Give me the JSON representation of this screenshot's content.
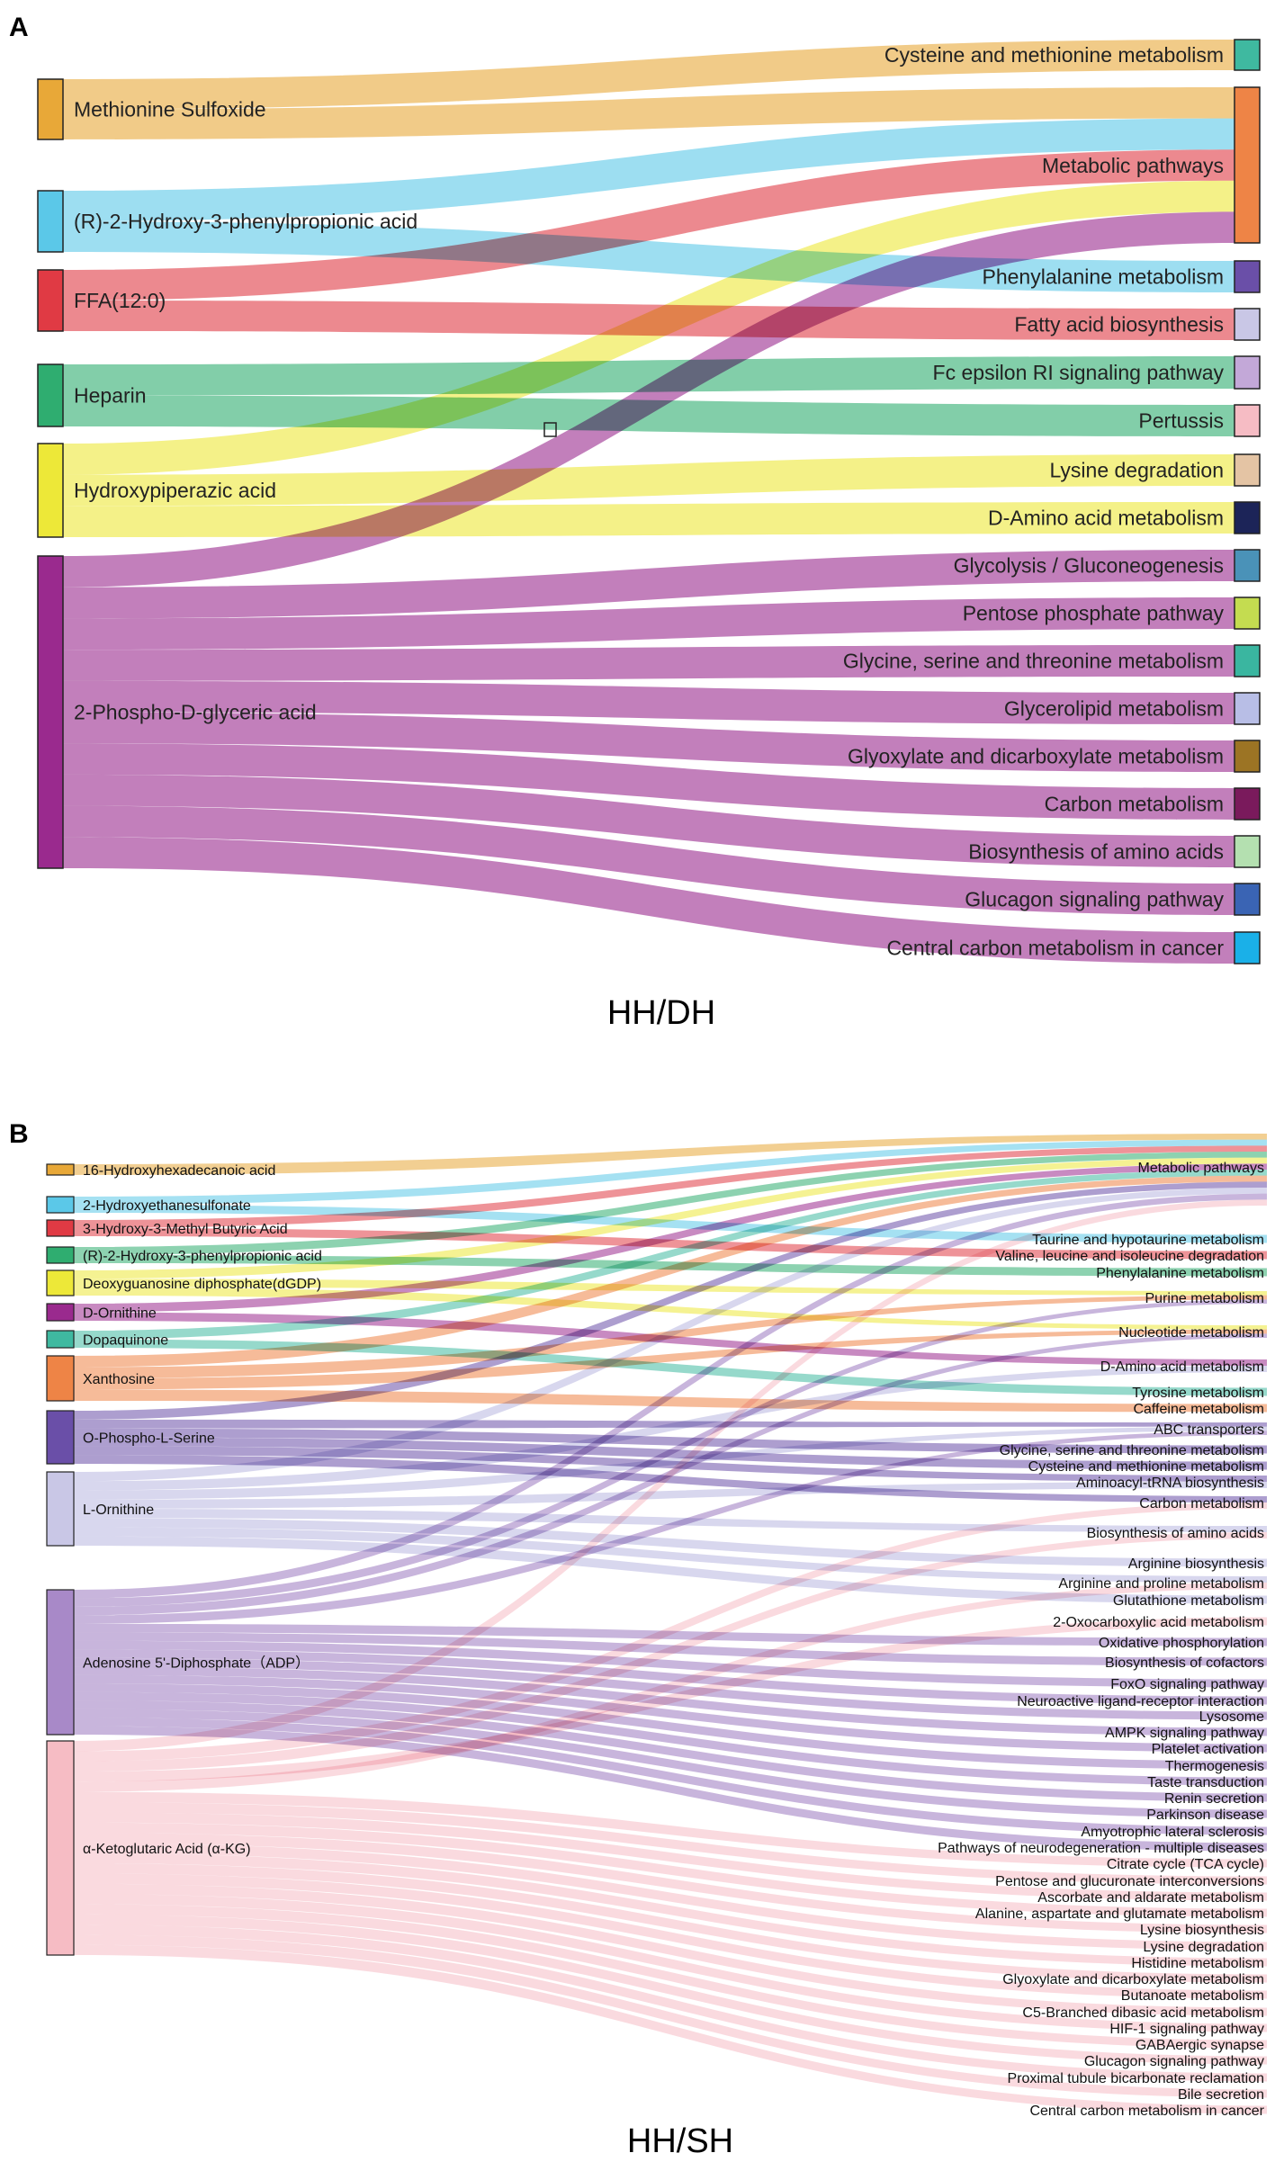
{
  "panels": [
    {
      "label": "A",
      "caption": "HH/DH",
      "sources": [
        {
          "name": "Methionine Sulfoxide",
          "color": "#e8a838"
        },
        {
          "name": "(R)-2-Hydroxy-3-phenylpropionic acid",
          "color": "#5bc8e8"
        },
        {
          "name": "FFA(12:0)",
          "color": "#e03a44"
        },
        {
          "name": "Heparin",
          "color": "#2fad70"
        },
        {
          "name": "Hydroxypiperazic acid",
          "color": "#ede838"
        },
        {
          "name": "2-Phospho-D-glyceric acid",
          "color": "#9a2a8e"
        }
      ],
      "targets": [
        {
          "name": "Cysteine and methionine metabolism",
          "color": "#3fb9a0"
        },
        {
          "name": "Metabolic pathways",
          "color": "#ee8446"
        },
        {
          "name": "Phenylalanine metabolism",
          "color": "#6a4fa8"
        },
        {
          "name": "Fatty acid biosynthesis",
          "color": "#c9c7e6"
        },
        {
          "name": "Fc epsilon RI signaling pathway",
          "color": "#c3a8d8"
        },
        {
          "name": "Pertussis",
          "color": "#f6bcc4"
        },
        {
          "name": "Lysine degradation",
          "color": "#e4c4a4"
        },
        {
          "name": "D-Amino acid metabolism",
          "color": "#1c2458"
        },
        {
          "name": "Glycolysis / Gluconeogenesis",
          "color": "#4a92b8"
        },
        {
          "name": "Pentose phosphate pathway",
          "color": "#c4dc50"
        },
        {
          "name": "Glycine, serine and threonine metabolism",
          "color": "#3ab6a0"
        },
        {
          "name": "Glycerolipid metabolism",
          "color": "#b8bee6"
        },
        {
          "name": "Glyoxylate and dicarboxylate metabolism",
          "color": "#9c7424"
        },
        {
          "name": "Carbon metabolism",
          "color": "#7a1a5c"
        },
        {
          "name": "Biosynthesis of amino acids",
          "color": "#b4e0b0"
        },
        {
          "name": "Glucagon signaling pathway",
          "color": "#3a64b4"
        },
        {
          "name": "Central carbon metabolism in cancer",
          "color": "#1ab0e8"
        }
      ],
      "links": [
        [
          0,
          0
        ],
        [
          0,
          1
        ],
        [
          1,
          1
        ],
        [
          1,
          2
        ],
        [
          2,
          1
        ],
        [
          2,
          3
        ],
        [
          3,
          4
        ],
        [
          3,
          5
        ],
        [
          4,
          1
        ],
        [
          4,
          6
        ],
        [
          4,
          7
        ],
        [
          5,
          1
        ],
        [
          5,
          8
        ],
        [
          5,
          9
        ],
        [
          5,
          10
        ],
        [
          5,
          11
        ],
        [
          5,
          12
        ],
        [
          5,
          13
        ],
        [
          5,
          14
        ],
        [
          5,
          15
        ],
        [
          5,
          16
        ]
      ]
    },
    {
      "label": "B",
      "caption": "HH/SH",
      "sources": [
        {
          "name": "16-Hydroxyhexadecanoic acid",
          "color": "#e8a838"
        },
        {
          "name": "2-Hydroxyethanesulfonate",
          "color": "#5bc8e8"
        },
        {
          "name": "3-Hydroxy-3-Methyl Butyric Acid",
          "color": "#e03a44"
        },
        {
          "name": "(R)-2-Hydroxy-3-phenylpropionic acid",
          "color": "#2fad70"
        },
        {
          "name": "Deoxyguanosine diphosphate(dGDP)",
          "color": "#ede838"
        },
        {
          "name": "D-Ornithine",
          "color": "#9a2a8e"
        },
        {
          "name": "Dopaquinone",
          "color": "#3fb9a0"
        },
        {
          "name": "Xanthosine",
          "color": "#ee8446"
        },
        {
          "name": "O-Phospho-L-Serine",
          "color": "#6a4fa8"
        },
        {
          "name": "L-Ornithine",
          "color": "#c9c7e6"
        },
        {
          "name": "Adenosine 5'-Diphosphate（ADP）",
          "color": "#a889c8"
        },
        {
          "name": "α-Ketoglutaric Acid (α-KG)",
          "color": "#f6bcc4"
        }
      ],
      "targets": [
        "Metabolic pathways",
        "Taurine and hypotaurine metabolism",
        "Valine, leucine and isoleucine degradation",
        "Phenylalanine metabolism",
        "Purine metabolism",
        "Nucleotide metabolism",
        "D-Amino acid metabolism",
        "Tyrosine metabolism",
        "Caffeine metabolism",
        "ABC transporters",
        "Glycine, serine and threonine metabolism",
        "Cysteine and methionine metabolism",
        "Aminoacyl-tRNA biosynthesis",
        "Carbon metabolism",
        "Biosynthesis of amino acids",
        "Arginine biosynthesis",
        "Arginine and proline metabolism",
        "Glutathione metabolism",
        "2-Oxocarboxylic acid metabolism",
        "Oxidative phosphorylation",
        "Biosynthesis of cofactors",
        "FoxO signaling pathway",
        "Neuroactive ligand-receptor interaction",
        "Lysosome",
        "AMPK signaling pathway",
        "Platelet activation",
        "Thermogenesis",
        "Taste transduction",
        "Renin secretion",
        "Parkinson disease",
        "Amyotrophic lateral sclerosis",
        "Pathways of neurodegeneration - multiple diseases",
        "Citrate cycle (TCA cycle)",
        "Pentose and glucuronate interconversions",
        "Ascorbate and aldarate metabolism",
        "Alanine, aspartate and glutamate metabolism",
        "Lysine biosynthesis",
        "Lysine degradation",
        "Histidine metabolism",
        "Glyoxylate and dicarboxylate metabolism",
        "Butanoate metabolism",
        "C5-Branched dibasic acid metabolism",
        "HIF-1 signaling pathway",
        "GABAergic synapse",
        "Glucagon signaling pathway",
        "Proximal tubule bicarbonate reclamation",
        "Bile secretion",
        "Central carbon metabolism in cancer"
      ],
      "links": [
        [
          0,
          0
        ],
        [
          1,
          0
        ],
        [
          1,
          1
        ],
        [
          2,
          0
        ],
        [
          2,
          2
        ],
        [
          3,
          0
        ],
        [
          3,
          3
        ],
        [
          4,
          0
        ],
        [
          4,
          4
        ],
        [
          4,
          5
        ],
        [
          5,
          0
        ],
        [
          5,
          6
        ],
        [
          6,
          0
        ],
        [
          6,
          7
        ],
        [
          7,
          0
        ],
        [
          7,
          4
        ],
        [
          7,
          5
        ],
        [
          7,
          8
        ],
        [
          8,
          0
        ],
        [
          8,
          9
        ],
        [
          8,
          10
        ],
        [
          8,
          11
        ],
        [
          8,
          12
        ],
        [
          8,
          13
        ],
        [
          9,
          0
        ],
        [
          9,
          6
        ],
        [
          9,
          9
        ],
        [
          9,
          12
        ],
        [
          9,
          14
        ],
        [
          9,
          15
        ],
        [
          9,
          16
        ],
        [
          9,
          17
        ],
        [
          10,
          0
        ],
        [
          10,
          4
        ],
        [
          10,
          5
        ],
        [
          10,
          9
        ],
        [
          10,
          19
        ],
        [
          10,
          20
        ],
        [
          10,
          21
        ],
        [
          10,
          22
        ],
        [
          10,
          23
        ],
        [
          10,
          24
        ],
        [
          10,
          25
        ],
        [
          10,
          26
        ],
        [
          10,
          27
        ],
        [
          10,
          28
        ],
        [
          10,
          29
        ],
        [
          10,
          30
        ],
        [
          10,
          31
        ],
        [
          11,
          0
        ],
        [
          11,
          13
        ],
        [
          11,
          14
        ],
        [
          11,
          18
        ],
        [
          11,
          16
        ],
        [
          11,
          32
        ],
        [
          11,
          33
        ],
        [
          11,
          34
        ],
        [
          11,
          35
        ],
        [
          11,
          36
        ],
        [
          11,
          37
        ],
        [
          11,
          38
        ],
        [
          11,
          39
        ],
        [
          11,
          40
        ],
        [
          11,
          41
        ],
        [
          11,
          42
        ],
        [
          11,
          43
        ],
        [
          11,
          44
        ],
        [
          11,
          45
        ],
        [
          11,
          46
        ],
        [
          11,
          47
        ]
      ]
    }
  ]
}
